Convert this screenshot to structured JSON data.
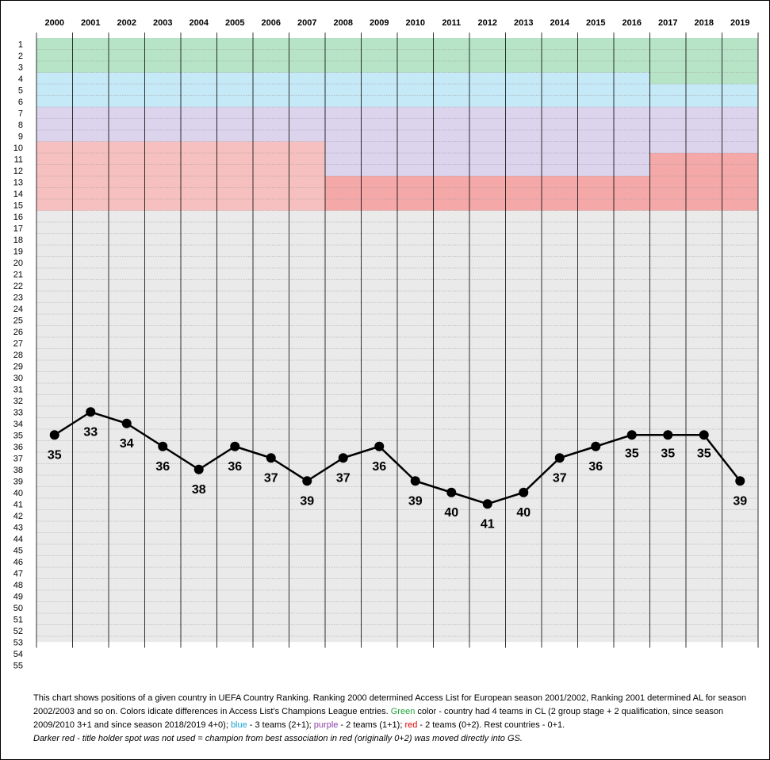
{
  "chart_data": {
    "type": "line",
    "title": "",
    "xlabel": "",
    "ylabel": "",
    "x": [
      "2000",
      "2001",
      "2002",
      "2003",
      "2004",
      "2005",
      "2006",
      "2007",
      "2008",
      "2009",
      "2010",
      "2011",
      "2012",
      "2013",
      "2014",
      "2015",
      "2016",
      "2017",
      "2018",
      "2019"
    ],
    "y_ticks": [
      1,
      2,
      3,
      4,
      5,
      6,
      7,
      8,
      9,
      10,
      11,
      12,
      13,
      14,
      15,
      16,
      17,
      18,
      19,
      20,
      21,
      22,
      23,
      24,
      25,
      26,
      27,
      28,
      29,
      30,
      31,
      32,
      33,
      34,
      35,
      36,
      37,
      38,
      39,
      40,
      41,
      42,
      43,
      44,
      45,
      46,
      47,
      48,
      49,
      50,
      51,
      52,
      53,
      54,
      55
    ],
    "ylim": [
      1,
      55
    ],
    "y_inverted": true,
    "series": [
      {
        "values": [
          35,
          33,
          34,
          36,
          38,
          36,
          37,
          39,
          37,
          36,
          39,
          40,
          41,
          40,
          37,
          36,
          35,
          35,
          35,
          39
        ],
        "labels": [
          "35",
          "33",
          "34",
          "36",
          "38",
          "36",
          "37",
          "39",
          "37",
          "36",
          "39",
          "40",
          "41",
          "40",
          "37",
          "36",
          "35",
          "35",
          "35",
          "39"
        ],
        "label_position": [
          "below",
          "below",
          "below",
          "below",
          "below",
          "below",
          "below",
          "below",
          "below",
          "below",
          "below",
          "below",
          "below",
          "below",
          "below",
          "below",
          "above",
          "above",
          "above",
          "below"
        ],
        "color": "#000000"
      }
    ],
    "bands": [
      {
        "category": "green",
        "color": "#b7e4c7",
        "from_year": 0,
        "to_year": 16,
        "rows": [
          1,
          3
        ]
      },
      {
        "category": "green",
        "color": "#b7e4c7",
        "from_year": 17,
        "to_year": 19,
        "rows": [
          1,
          4
        ]
      },
      {
        "category": "blue",
        "color": "#c5e9f7",
        "from_year": 0,
        "to_year": 16,
        "rows": [
          4,
          6
        ]
      },
      {
        "category": "blue",
        "color": "#c5e9f7",
        "from_year": 17,
        "to_year": 19,
        "rows": [
          5,
          6
        ]
      },
      {
        "category": "purple",
        "color": "#dcd3ec",
        "from_year": 0,
        "to_year": 7,
        "rows": [
          7,
          9
        ]
      },
      {
        "category": "purple",
        "color": "#dcd3ec",
        "from_year": 8,
        "to_year": 16,
        "rows": [
          7,
          12
        ]
      },
      {
        "category": "purple",
        "color": "#dcd3ec",
        "from_year": 17,
        "to_year": 19,
        "rows": [
          7,
          10
        ]
      },
      {
        "category": "red",
        "color": "#f7c0c0",
        "from_year": 0,
        "to_year": 7,
        "rows": [
          10,
          15
        ]
      },
      {
        "category": "red-dark",
        "color": "#f4a8a8",
        "from_year": 8,
        "to_year": 16,
        "rows": [
          13,
          15
        ]
      },
      {
        "category": "red-dark",
        "color": "#f4a8a8",
        "from_year": 17,
        "to_year": 19,
        "rows": [
          11,
          15
        ]
      }
    ],
    "grid": true,
    "legend": "none",
    "colors": {
      "rest": "#eaeaea",
      "gridline": "#9a9a9a",
      "year_line": "#000000",
      "line": "#000000"
    }
  },
  "caption": {
    "part1": "This chart shows positions of a given country in  UEFA Country Ranking. Ranking 2000 determined Access List for European season 2001/2002, Ranking 2001 determined AL for season 2002/2003 and so on.  Colors idicate differences in Access List's Champions League entries.  ",
    "green_word": "Green",
    "part2": " color - country had 4 teams in CL (2 group stage + 2 qualification, since season 2009/2010 3+1 and since season 2018/2019  4+0); ",
    "blue_word": "blue",
    "part3": " - 3 teams  (2+1); ",
    "purple_word": "purple",
    "part4": " - 2 teams (1+1); ",
    "red_word": "red",
    "part5": " - 2 teams (0+2). Rest countries - 0+1.",
    "note": "Darker red - title holder spot was not used = champion from best association in red (originally 0+2) was moved directly into GS."
  }
}
